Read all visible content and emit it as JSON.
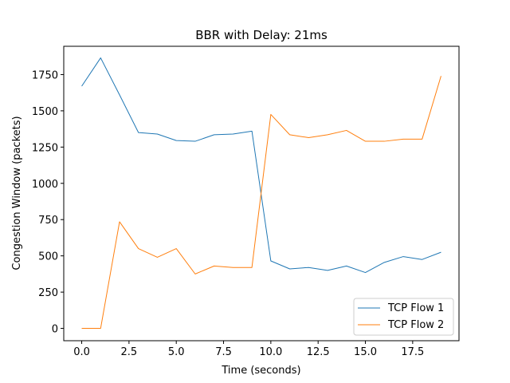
{
  "chart_data": {
    "type": "line",
    "title": "BBR with Delay: 21ms",
    "xlabel": "Time (seconds)",
    "ylabel": "Congestion Window (packets)",
    "xlim": [
      -0.95,
      19.95
    ],
    "ylim": [
      -85,
      1945
    ],
    "xticks": [
      0,
      2.5,
      5,
      7.5,
      10,
      12.5,
      15,
      17.5
    ],
    "xtick_labels": [
      "0.0",
      "2.5",
      "5.0",
      "7.5",
      "10.0",
      "12.5",
      "15.0",
      "17.5"
    ],
    "yticks": [
      0,
      250,
      500,
      750,
      1000,
      1250,
      1500,
      1750
    ],
    "ytick_labels": [
      "0",
      "250",
      "500",
      "750",
      "1000",
      "1250",
      "1500",
      "1750"
    ],
    "grid": false,
    "legend_position": "bottom-right",
    "x": [
      0,
      1,
      2,
      3,
      4,
      5,
      6,
      7,
      8,
      9,
      10,
      11,
      12,
      13,
      14,
      15,
      16,
      17,
      18,
      19
    ],
    "series": [
      {
        "name": "TCP Flow 1",
        "color": "#1f77b4",
        "values": [
          1670,
          1865,
          1610,
          1350,
          1340,
          1295,
          1290,
          1335,
          1340,
          1360,
          465,
          410,
          420,
          400,
          430,
          385,
          455,
          495,
          475,
          525
        ]
      },
      {
        "name": "TCP Flow 2",
        "color": "#ff7f0e",
        "values": [
          0,
          0,
          735,
          550,
          490,
          550,
          375,
          430,
          420,
          420,
          1475,
          1335,
          1315,
          1335,
          1365,
          1290,
          1290,
          1305,
          1305,
          1740
        ]
      }
    ]
  }
}
